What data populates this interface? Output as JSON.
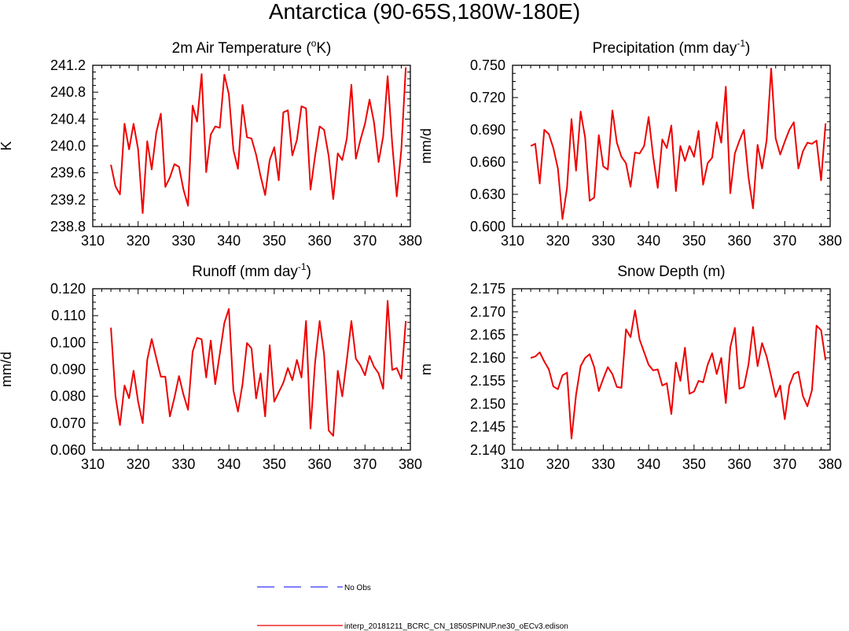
{
  "title": "Antarctica (90-65S,180W-180E)",
  "legend": [
    {
      "label": "No Obs",
      "color": "#3333ff",
      "dash": true
    },
    {
      "label": "interp_20181211_BCRC_CN_1850SPINUP.ne30_oECv3.edison",
      "color": "#ee0000",
      "dash": false
    }
  ],
  "chart_data": [
    {
      "type": "line",
      "title": {
        "main": "2m Air Temperature (",
        "sup": "o",
        "rest": "K)"
      },
      "ylabel": "K",
      "xlim": [
        310,
        380
      ],
      "ylim": [
        238.8,
        241.2
      ],
      "xticks": [
        "310",
        "320",
        "330",
        "340",
        "350",
        "360",
        "370",
        "380"
      ],
      "yticks": [
        "238.8",
        "239.2",
        "239.6",
        "240.0",
        "240.4",
        "240.8",
        "241.2"
      ],
      "x": [
        314,
        315,
        316,
        317,
        318,
        319,
        320,
        321,
        322,
        323,
        324,
        325,
        326,
        327,
        328,
        329,
        330,
        331,
        332,
        333,
        334,
        335,
        336,
        337,
        338,
        339,
        340,
        341,
        342,
        343,
        344,
        345,
        346,
        347,
        348,
        349,
        350,
        351,
        352,
        353,
        354,
        355,
        356,
        357,
        358,
        359,
        360,
        361,
        362,
        363,
        364,
        365,
        366,
        367,
        368,
        369,
        370,
        371,
        372,
        373,
        374,
        375,
        376,
        377,
        378,
        379
      ],
      "series": [
        {
          "color": "#ee0000",
          "values": [
            239.72,
            239.4,
            239.28,
            240.33,
            239.95,
            240.33,
            239.95,
            239.0,
            240.07,
            239.65,
            240.2,
            240.48,
            239.39,
            239.53,
            239.73,
            239.69,
            239.35,
            239.11,
            240.6,
            240.36,
            241.07,
            239.61,
            240.17,
            240.29,
            240.27,
            241.06,
            240.77,
            239.94,
            239.66,
            240.61,
            240.13,
            240.11,
            239.87,
            239.55,
            239.27,
            239.79,
            239.98,
            239.49,
            240.5,
            240.53,
            239.86,
            240.09,
            240.59,
            240.56,
            239.35,
            239.85,
            240.29,
            240.24,
            239.85,
            239.21,
            239.89,
            239.79,
            240.11,
            240.91,
            239.81,
            240.09,
            240.33,
            240.69,
            240.35,
            239.76,
            240.14,
            241.04,
            240.04,
            239.25,
            239.94,
            241.17
          ]
        }
      ]
    },
    {
      "type": "line",
      "title": {
        "main": "Precipitation (mm day",
        "sup": "-1",
        "rest": ")"
      },
      "ylabel": "mm/d",
      "xlim": [
        310,
        380
      ],
      "ylim": [
        0.6,
        0.75
      ],
      "xticks": [
        "310",
        "320",
        "330",
        "340",
        "350",
        "360",
        "370",
        "380"
      ],
      "yticks": [
        "0.600",
        "0.630",
        "0.660",
        "0.690",
        "0.720",
        "0.750"
      ],
      "x": [
        314,
        315,
        316,
        317,
        318,
        319,
        320,
        321,
        322,
        323,
        324,
        325,
        326,
        327,
        328,
        329,
        330,
        331,
        332,
        333,
        334,
        335,
        336,
        337,
        338,
        339,
        340,
        341,
        342,
        343,
        344,
        345,
        346,
        347,
        348,
        349,
        350,
        351,
        352,
        353,
        354,
        355,
        356,
        357,
        358,
        359,
        360,
        361,
        362,
        363,
        364,
        365,
        366,
        367,
        368,
        369,
        370,
        371,
        372,
        373,
        374,
        375,
        376,
        377,
        378,
        379
      ],
      "series": [
        {
          "color": "#ee0000",
          "values": [
            0.675,
            0.677,
            0.64,
            0.69,
            0.686,
            0.673,
            0.654,
            0.607,
            0.636,
            0.7,
            0.652,
            0.707,
            0.683,
            0.624,
            0.627,
            0.685,
            0.656,
            0.653,
            0.708,
            0.678,
            0.665,
            0.659,
            0.637,
            0.669,
            0.668,
            0.675,
            0.702,
            0.665,
            0.636,
            0.681,
            0.673,
            0.694,
            0.633,
            0.675,
            0.661,
            0.675,
            0.665,
            0.689,
            0.639,
            0.659,
            0.664,
            0.697,
            0.678,
            0.73,
            0.631,
            0.668,
            0.68,
            0.69,
            0.646,
            0.617,
            0.676,
            0.654,
            0.68,
            0.747,
            0.682,
            0.667,
            0.679,
            0.69,
            0.697,
            0.654,
            0.67,
            0.678,
            0.677,
            0.68,
            0.643,
            0.696
          ]
        }
      ]
    },
    {
      "type": "line",
      "title": {
        "main": "Runoff (mm day",
        "sup": "-1",
        "rest": ")"
      },
      "ylabel": "mm/d",
      "xlim": [
        310,
        380
      ],
      "ylim": [
        0.06,
        0.12
      ],
      "xticks": [
        "310",
        "320",
        "330",
        "340",
        "350",
        "360",
        "370",
        "380"
      ],
      "yticks": [
        "0.060",
        "0.070",
        "0.080",
        "0.090",
        "0.100",
        "0.110",
        "0.120"
      ],
      "x": [
        314,
        315,
        316,
        317,
        318,
        319,
        320,
        321,
        322,
        323,
        324,
        325,
        326,
        327,
        328,
        329,
        330,
        331,
        332,
        333,
        334,
        335,
        336,
        337,
        338,
        339,
        340,
        341,
        342,
        343,
        344,
        345,
        346,
        347,
        348,
        349,
        350,
        351,
        352,
        353,
        354,
        355,
        356,
        357,
        358,
        359,
        360,
        361,
        362,
        363,
        364,
        365,
        366,
        367,
        368,
        369,
        370,
        371,
        372,
        373,
        374,
        375,
        376,
        377,
        378,
        379
      ],
      "series": [
        {
          "color": "#ee0000",
          "values": [
            0.1055,
            0.08,
            0.0693,
            0.084,
            0.0793,
            0.0895,
            0.078,
            0.07,
            0.0935,
            0.1013,
            0.0942,
            0.0873,
            0.0873,
            0.0725,
            0.0795,
            0.0875,
            0.0806,
            0.075,
            0.0965,
            0.1017,
            0.1012,
            0.087,
            0.1007,
            0.0845,
            0.0958,
            0.1073,
            0.1125,
            0.0822,
            0.0743,
            0.0845,
            0.0998,
            0.0978,
            0.0792,
            0.0885,
            0.0725,
            0.099,
            0.078,
            0.0815,
            0.085,
            0.0905,
            0.086,
            0.0935,
            0.087,
            0.108,
            0.068,
            0.0925,
            0.108,
            0.0955,
            0.0673,
            0.0653,
            0.0895,
            0.08,
            0.0935,
            0.108,
            0.094,
            0.0915,
            0.0878,
            0.095,
            0.091,
            0.0885,
            0.0828,
            0.1155,
            0.0898,
            0.0905,
            0.0865,
            0.108
          ]
        }
      ]
    },
    {
      "type": "line",
      "title": {
        "main": "Snow Depth (m)",
        "sup": "",
        "rest": ""
      },
      "ylabel": "m",
      "xlim": [
        310,
        380
      ],
      "ylim": [
        2.14,
        2.175
      ],
      "xticks": [
        "310",
        "320",
        "330",
        "340",
        "350",
        "360",
        "370",
        "380"
      ],
      "yticks": [
        "2.140",
        "2.145",
        "2.150",
        "2.155",
        "2.160",
        "2.165",
        "2.170",
        "2.175"
      ],
      "x": [
        314,
        315,
        316,
        317,
        318,
        319,
        320,
        321,
        322,
        323,
        324,
        325,
        326,
        327,
        328,
        329,
        330,
        331,
        332,
        333,
        334,
        335,
        336,
        337,
        338,
        339,
        340,
        341,
        342,
        343,
        344,
        345,
        346,
        347,
        348,
        349,
        350,
        351,
        352,
        353,
        354,
        355,
        356,
        357,
        358,
        359,
        360,
        361,
        362,
        363,
        364,
        365,
        366,
        367,
        368,
        369,
        370,
        371,
        372,
        373,
        374,
        375,
        376,
        377,
        378,
        379
      ],
      "series": [
        {
          "color": "#ee0000",
          "values": [
            2.16,
            2.1603,
            2.1612,
            2.1592,
            2.1575,
            2.1538,
            2.1532,
            2.1562,
            2.1568,
            2.1425,
            2.152,
            2.1582,
            2.16,
            2.1608,
            2.158,
            2.1528,
            2.1555,
            2.158,
            2.1565,
            2.1537,
            2.1535,
            2.1662,
            2.1645,
            2.1703,
            2.164,
            2.1612,
            2.1585,
            2.1573,
            2.1575,
            2.154,
            2.1545,
            2.1478,
            2.159,
            2.155,
            2.1622,
            2.1522,
            2.1527,
            2.155,
            2.1547,
            2.1585,
            2.161,
            2.1565,
            2.16,
            2.1502,
            2.1623,
            2.1665,
            2.1533,
            2.1537,
            2.1585,
            2.1667,
            2.1582,
            2.1632,
            2.1603,
            2.156,
            2.1515,
            2.154,
            2.1467,
            2.154,
            2.1565,
            2.157,
            2.1517,
            2.1495,
            2.153,
            2.167,
            2.166,
            2.1595
          ]
        }
      ]
    }
  ]
}
